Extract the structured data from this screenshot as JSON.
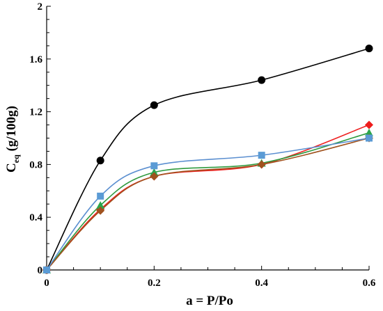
{
  "chart_data": {
    "type": "scatter",
    "title": "",
    "xlabel": "a = P/Po",
    "ylabel_main": "C",
    "ylabel_sub": "eq",
    "ylabel_rest": " (g/100g)",
    "xlim": [
      0,
      0.6
    ],
    "ylim": [
      0,
      2
    ],
    "x_ticks": [
      0,
      0.2,
      0.4,
      0.6
    ],
    "x_tick_labels": [
      "0",
      "0.2",
      "0.4",
      "0.6"
    ],
    "y_ticks": [
      0,
      0.4,
      0.8,
      1.2,
      1.6,
      2
    ],
    "y_tick_labels": [
      "0",
      "0.4",
      "0.8",
      "1.2",
      "1.6",
      "2"
    ],
    "grid": false,
    "legend": "none",
    "series": [
      {
        "marker": "circle",
        "color": "#000000",
        "line_color": "#000000",
        "x": [
          0,
          0.1,
          0.2,
          0.4,
          0.6
        ],
        "y": [
          0,
          0.83,
          1.25,
          1.44,
          1.68
        ]
      },
      {
        "marker": "diamond",
        "color": "#ee1c1c",
        "line_color": "#ee2222",
        "x": [
          0,
          0.1,
          0.2,
          0.4,
          0.6
        ],
        "y": [
          0,
          0.46,
          0.71,
          0.8,
          1.1
        ]
      },
      {
        "marker": "triangle",
        "color": "#2ca54c",
        "line_color": "#2e9a3e",
        "x": [
          0,
          0.1,
          0.2,
          0.4,
          0.6
        ],
        "y": [
          0,
          0.49,
          0.74,
          0.81,
          1.04
        ]
      },
      {
        "marker": "diamond",
        "color": "#a0521e",
        "line_color": "#a0521e",
        "x": [
          0,
          0.1,
          0.2,
          0.4,
          0.6
        ],
        "y": [
          0,
          0.45,
          0.71,
          0.8,
          1.0
        ]
      },
      {
        "marker": "square",
        "color": "#5b9bd5",
        "line_color": "#5b8fd0",
        "x": [
          0,
          0.1,
          0.2,
          0.4,
          0.6
        ],
        "y": [
          0,
          0.56,
          0.79,
          0.87,
          1.0
        ]
      }
    ]
  }
}
